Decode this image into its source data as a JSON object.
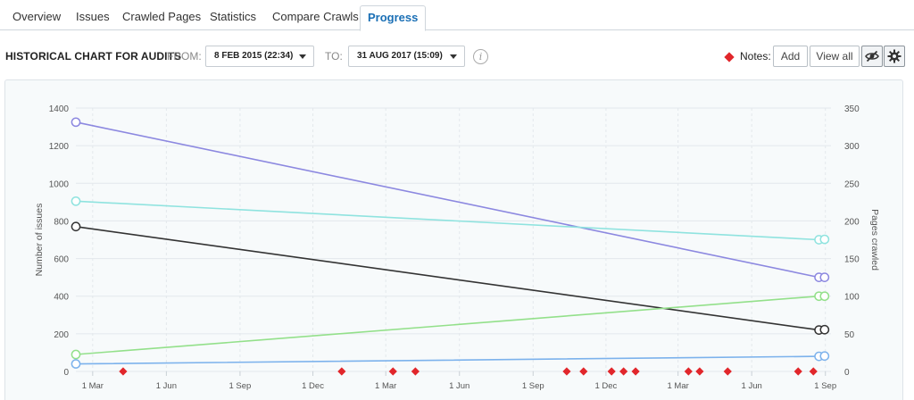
{
  "tabs": [
    {
      "label": "Overview",
      "active": false
    },
    {
      "label": "Issues",
      "active": false
    },
    {
      "label": "Crawled Pages",
      "active": false
    },
    {
      "label": "Statistics",
      "active": false
    },
    {
      "label": "Compare Crawls",
      "active": false
    },
    {
      "label": "Progress",
      "active": true
    }
  ],
  "toolbar": {
    "title": "HISTORICAL CHART FOR AUDITS",
    "from_label": "FROM:",
    "from_value": "8 FEB 2015 (22:34)",
    "to_label": "TO:",
    "to_value": "31 AUG 2017 (15:09)",
    "info_icon": "info-icon",
    "notes_label": "Notes:",
    "add_label": "Add",
    "view_all_label": "View all",
    "eye_icon": "eye-slash-icon",
    "gear_icon": "gear-icon",
    "notes_color": "#e1262b"
  },
  "chart_data": {
    "type": "line",
    "ylabel": "Number of issues",
    "y2label": "Pages crawled",
    "ylim": [
      0,
      1400
    ],
    "y2lim": [
      0,
      350
    ],
    "yticks": [
      0,
      200,
      400,
      600,
      800,
      1000,
      1200,
      1400
    ],
    "y2ticks": [
      0,
      50,
      100,
      150,
      200,
      250,
      300,
      350
    ],
    "xlim": [
      "2015-02-08",
      "2017-09-08"
    ],
    "xticks": [
      {
        "label": "1 Mar",
        "date": "2015-03-01"
      },
      {
        "label": "1 Jun",
        "date": "2015-06-01"
      },
      {
        "label": "1 Sep",
        "date": "2015-09-01"
      },
      {
        "label": "1 Dec",
        "date": "2015-12-01"
      },
      {
        "label": "1 Mar",
        "date": "2016-03-01"
      },
      {
        "label": "1 Jun",
        "date": "2016-06-01"
      },
      {
        "label": "1 Sep",
        "date": "2016-09-01"
      },
      {
        "label": "1 Dec",
        "date": "2016-12-01"
      },
      {
        "label": "1 Mar",
        "date": "2017-03-01"
      },
      {
        "label": "1 Jun",
        "date": "2017-06-01"
      },
      {
        "label": "1 Sep",
        "date": "2017-09-01"
      }
    ],
    "grid": true,
    "series": [
      {
        "axis": "left",
        "color": "#8c88e0",
        "points": [
          [
            "2015-02-08",
            1325
          ],
          [
            "2017-08-24",
            500
          ],
          [
            "2017-08-31",
            500
          ]
        ]
      },
      {
        "axis": "left",
        "color": "#8fe3df",
        "points": [
          [
            "2015-02-08",
            905
          ],
          [
            "2017-08-24",
            700
          ],
          [
            "2017-08-31",
            702
          ]
        ]
      },
      {
        "axis": "left",
        "color": "#333333",
        "points": [
          [
            "2015-02-08",
            770
          ],
          [
            "2017-08-24",
            220
          ],
          [
            "2017-08-31",
            222
          ]
        ]
      },
      {
        "axis": "left",
        "color": "#93e08a",
        "points": [
          [
            "2015-02-08",
            90
          ],
          [
            "2017-08-24",
            400
          ],
          [
            "2017-08-31",
            400
          ]
        ]
      },
      {
        "axis": "left",
        "color": "#7cb2ec",
        "points": [
          [
            "2015-02-08",
            40
          ],
          [
            "2017-08-24",
            80
          ],
          [
            "2017-08-31",
            82
          ]
        ]
      }
    ],
    "notes": [
      "2015-04-08",
      "2016-01-06",
      "2016-03-10",
      "2016-04-07",
      "2016-10-13",
      "2016-11-03",
      "2016-12-08",
      "2016-12-23",
      "2017-01-07",
      "2017-03-14",
      "2017-03-28",
      "2017-05-02",
      "2017-07-29",
      "2017-08-17"
    ]
  }
}
